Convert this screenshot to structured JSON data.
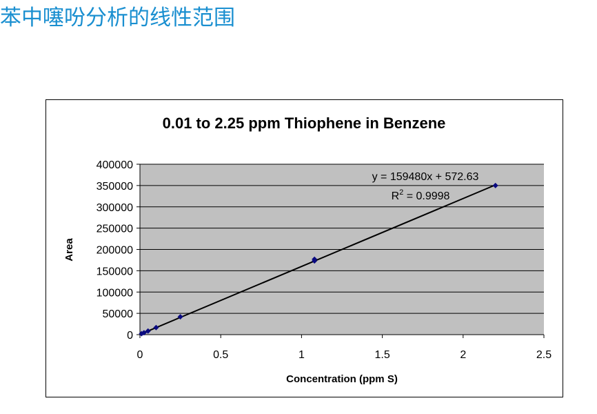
{
  "page": {
    "title": "苯中噻吩分析的线性范围"
  },
  "chart_data": {
    "type": "scatter",
    "title": "0.01 to 2.25 ppm Thiophene in Benzene",
    "xlabel": "Concentration (ppm S)",
    "ylabel": "Area",
    "xlim": [
      0,
      2.5
    ],
    "ylim": [
      0,
      400000
    ],
    "xticks": [
      0,
      0.5,
      1,
      1.5,
      2,
      2.5
    ],
    "xtick_labels": [
      "0",
      "0.5",
      "1",
      "1.5",
      "2",
      "2.5"
    ],
    "yticks": [
      0,
      50000,
      100000,
      150000,
      200000,
      250000,
      300000,
      350000,
      400000
    ],
    "ytick_labels": [
      "0",
      "50000",
      "100000",
      "150000",
      "200000",
      "250000",
      "300000",
      "350000",
      "400000"
    ],
    "grid": true,
    "series": [
      {
        "x": [
          0.01,
          0.025,
          0.05,
          0.1,
          0.25,
          1.08,
          1.08,
          2.2
        ],
        "y": [
          2200,
          4500,
          8500,
          16500,
          42000,
          173000,
          177000,
          350000
        ],
        "color": "#0a0a80"
      }
    ],
    "trendline": {
      "slope": 159480,
      "intercept": 572.63,
      "x_range": [
        0,
        2.2
      ],
      "equation": "y = 159480x + 572.63",
      "r2_prefix": "R",
      "r2_sup": "2",
      "r2_value": " = 0.9998"
    },
    "colors": {
      "plot_background": "#c0c0c0",
      "gridline": "#000000",
      "marker": "#0a0a80",
      "trendline": "#000000"
    }
  }
}
